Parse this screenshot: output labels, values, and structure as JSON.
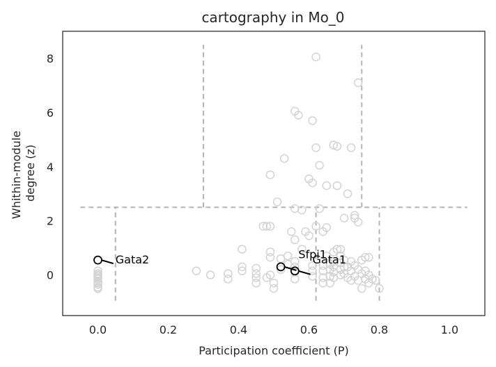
{
  "chart_data": {
    "type": "scatter",
    "title": "cartography in Mo_0",
    "xlabel": "Participation coefficient (P)",
    "ylabel": [
      "Whithin-module",
      "degree (z)"
    ],
    "xlim": [
      -0.1,
      1.1
    ],
    "ylim": [
      -1.5,
      9.0
    ],
    "xticks": [
      0.0,
      0.2,
      0.4,
      0.6,
      0.8,
      1.0
    ],
    "xtick_labels": [
      "0.0",
      "0.2",
      "0.4",
      "0.6",
      "0.8",
      "1.0"
    ],
    "yticks": [
      0,
      2,
      4,
      6,
      8
    ],
    "ytick_labels": [
      "0",
      "2",
      "4",
      "6",
      "8"
    ],
    "grid": false,
    "colors": {
      "points": "#d3d3d3",
      "highlight": "#000000",
      "guides": "#b3b3b3",
      "frame": "#262626"
    },
    "guide_lines": {
      "horizontal": [
        {
          "y": 2.5,
          "x0": -0.05,
          "x1": 1.05
        }
      ],
      "vertical": [
        {
          "x": 0.05,
          "y0": -0.95,
          "y1": 2.5
        },
        {
          "x": 0.62,
          "y0": -0.95,
          "y1": 2.5
        },
        {
          "x": 0.8,
          "y0": -0.95,
          "y1": 2.5
        },
        {
          "x": 0.3,
          "y0": 2.5,
          "y1": 8.5
        },
        {
          "x": 0.75,
          "y0": 2.5,
          "y1": 8.5
        }
      ]
    },
    "points": [
      [
        0.0,
        0.05
      ],
      [
        0.0,
        -0.05
      ],
      [
        0.0,
        -0.15
      ],
      [
        0.0,
        -0.25
      ],
      [
        0.0,
        -0.35
      ],
      [
        0.0,
        -0.45
      ],
      [
        0.0,
        -0.5
      ],
      [
        0.0,
        0.15
      ],
      [
        0.0,
        -0.1
      ],
      [
        0.0,
        -0.3
      ],
      [
        0.28,
        0.15
      ],
      [
        0.32,
        0.0
      ],
      [
        0.37,
        0.05
      ],
      [
        0.37,
        -0.15
      ],
      [
        0.41,
        0.3
      ],
      [
        0.41,
        0.15
      ],
      [
        0.41,
        0.95
      ],
      [
        0.45,
        0.25
      ],
      [
        0.45,
        0.05
      ],
      [
        0.45,
        -0.1
      ],
      [
        0.45,
        -0.3
      ],
      [
        0.47,
        1.8
      ],
      [
        0.48,
        1.8
      ],
      [
        0.49,
        1.8
      ],
      [
        0.49,
        0.85
      ],
      [
        0.49,
        0.65
      ],
      [
        0.48,
        -0.1
      ],
      [
        0.49,
        0.0
      ],
      [
        0.5,
        -0.3
      ],
      [
        0.5,
        -0.5
      ],
      [
        0.49,
        3.7
      ],
      [
        0.51,
        2.7
      ],
      [
        0.52,
        0.6
      ],
      [
        0.52,
        0.2
      ],
      [
        0.53,
        4.3
      ],
      [
        0.54,
        0.7
      ],
      [
        0.54,
        0.4
      ],
      [
        0.55,
        1.6
      ],
      [
        0.56,
        2.45
      ],
      [
        0.56,
        1.3
      ],
      [
        0.56,
        0.5
      ],
      [
        0.56,
        0.3
      ],
      [
        0.56,
        0.1
      ],
      [
        0.56,
        -0.15
      ],
      [
        0.56,
        6.05
      ],
      [
        0.57,
        5.9
      ],
      [
        0.58,
        2.4
      ],
      [
        0.58,
        0.95
      ],
      [
        0.59,
        1.6
      ],
      [
        0.6,
        3.55
      ],
      [
        0.6,
        1.45
      ],
      [
        0.61,
        3.4
      ],
      [
        0.61,
        5.7
      ],
      [
        0.62,
        8.05
      ],
      [
        0.62,
        4.7
      ],
      [
        0.62,
        1.8
      ],
      [
        0.61,
        0.35
      ],
      [
        0.61,
        0.15
      ],
      [
        0.61,
        -0.05
      ],
      [
        0.63,
        2.45
      ],
      [
        0.63,
        4.05
      ],
      [
        0.64,
        1.6
      ],
      [
        0.64,
        0.35
      ],
      [
        0.64,
        0.15
      ],
      [
        0.64,
        -0.1
      ],
      [
        0.64,
        -0.3
      ],
      [
        0.65,
        0.7
      ],
      [
        0.65,
        3.3
      ],
      [
        0.65,
        1.75
      ],
      [
        0.66,
        0.4
      ],
      [
        0.66,
        0.2
      ],
      [
        0.66,
        -0.05
      ],
      [
        0.66,
        -0.3
      ],
      [
        0.67,
        4.8
      ],
      [
        0.67,
        0.85
      ],
      [
        0.67,
        0.5
      ],
      [
        0.67,
        0.3
      ],
      [
        0.67,
        0.1
      ],
      [
        0.67,
        -0.1
      ],
      [
        0.68,
        4.75
      ],
      [
        0.68,
        3.3
      ],
      [
        0.68,
        0.95
      ],
      [
        0.69,
        0.95
      ],
      [
        0.69,
        0.7
      ],
      [
        0.69,
        0.45
      ],
      [
        0.69,
        0.2
      ],
      [
        0.69,
        0.0
      ],
      [
        0.7,
        2.1
      ],
      [
        0.7,
        0.55
      ],
      [
        0.7,
        0.3
      ],
      [
        0.7,
        0.05
      ],
      [
        0.71,
        0.3
      ],
      [
        0.71,
        -0.1
      ],
      [
        0.71,
        3.0
      ],
      [
        0.72,
        0.5
      ],
      [
        0.72,
        0.15
      ],
      [
        0.72,
        -0.2
      ],
      [
        0.72,
        4.7
      ],
      [
        0.73,
        2.1
      ],
      [
        0.73,
        2.2
      ],
      [
        0.73,
        0.35
      ],
      [
        0.73,
        -0.05
      ],
      [
        0.74,
        7.1
      ],
      [
        0.74,
        1.95
      ],
      [
        0.74,
        0.2
      ],
      [
        0.74,
        -0.2
      ],
      [
        0.75,
        0.55
      ],
      [
        0.75,
        0.05
      ],
      [
        0.75,
        -0.5
      ],
      [
        0.76,
        0.65
      ],
      [
        0.76,
        0.15
      ],
      [
        0.76,
        -0.15
      ],
      [
        0.77,
        0.65
      ],
      [
        0.77,
        0.0
      ],
      [
        0.77,
        -0.3
      ],
      [
        0.78,
        -0.15
      ],
      [
        0.79,
        -0.2
      ],
      [
        0.8,
        -0.5
      ],
      [
        0.0,
        0.0
      ]
    ],
    "highlighted": [
      {
        "name": "Gata2",
        "x": 0.0,
        "y": 0.55,
        "label_dx": 0.05,
        "label_dy": 0.0
      },
      {
        "name": "Sfpi1",
        "x": 0.52,
        "y": 0.3,
        "label_dx": 0.05,
        "label_dy": 0.45
      },
      {
        "name": "Gata1",
        "x": 0.56,
        "y": 0.15,
        "label_dx": 0.05,
        "label_dy": 0.4
      }
    ]
  }
}
